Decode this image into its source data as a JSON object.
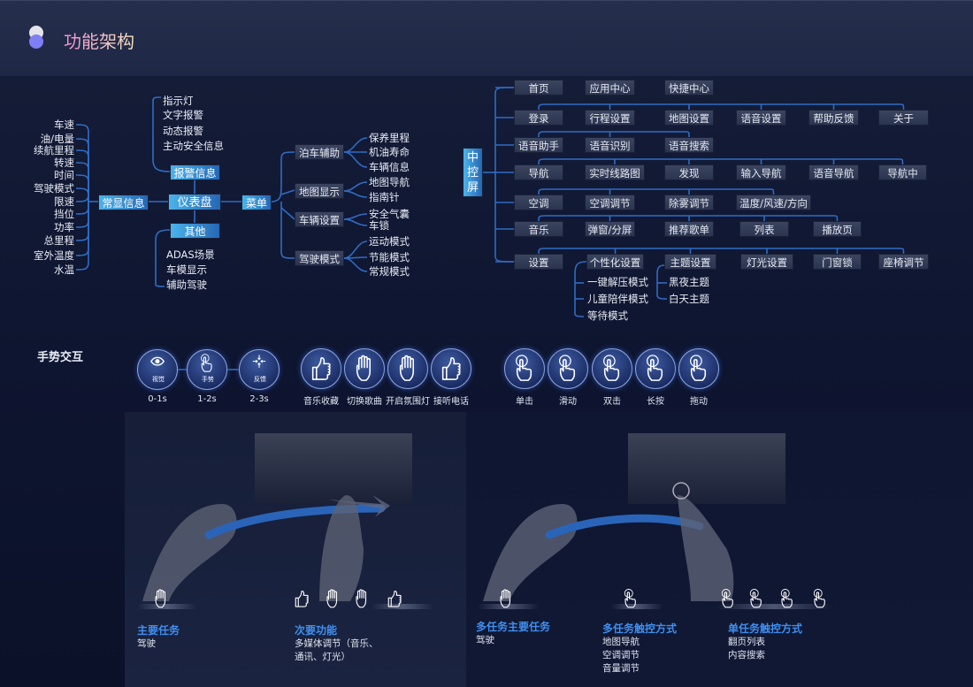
{
  "header": {
    "title": "功能架构"
  },
  "dashboard": {
    "root": "仪表盘",
    "always_on": {
      "label": "常显信息",
      "items": [
        "车速",
        "油/电量",
        "续航里程",
        "转速",
        "时间",
        "驾驶模式",
        "限速",
        "挡位",
        "功率",
        "总里程",
        "室外温度",
        "水温"
      ]
    },
    "alerts": {
      "label": "报警信息",
      "items": [
        "指示灯",
        "文字报警",
        "动态报警",
        "主动安全信息"
      ]
    },
    "other": {
      "label": "其他",
      "items": [
        "ADAS场景",
        "车模显示",
        "辅助驾驶"
      ]
    },
    "menu": {
      "label": "菜单",
      "groups": [
        {
          "label": "泊车辅助",
          "items": [
            "保养里程",
            "机油寿命",
            "车辆信息"
          ]
        },
        {
          "label": "地图显示",
          "items": [
            "地图导航",
            "指南针"
          ]
        },
        {
          "label": "车辆设置",
          "items": [
            "安全气囊",
            "车锁"
          ]
        },
        {
          "label": "驾驶模式",
          "items": [
            "运动模式",
            "节能模式",
            "常规模式"
          ]
        }
      ]
    }
  },
  "center_screen": {
    "root": "中控屏",
    "rows": [
      [
        "首页",
        "应用中心",
        "快捷中心"
      ],
      [
        "登录",
        "行程设置",
        "地图设置",
        "语音设置",
        "帮助反馈",
        "关于"
      ],
      [
        "语音助手",
        "语音识别",
        "语音搜索"
      ],
      [
        "导航",
        "实时线路图",
        "发现",
        "输入导航",
        "语音导航",
        "导航中"
      ],
      [
        "空调",
        "空调调节",
        "除雾调节",
        "温度/风速/方向"
      ],
      [
        "音乐",
        "弹窗/分屏",
        "推荐歌单",
        "列表",
        "播放页"
      ],
      [
        "设置",
        "个性化设置",
        "主题设置",
        "灯光设置",
        "门窗锁",
        "座椅调节"
      ]
    ],
    "personalization": [
      "一键解压模式",
      "儿童陪伴模式",
      "等待模式"
    ],
    "themes": [
      "黑夜主题",
      "白天主题"
    ]
  },
  "gestures": {
    "title": "手势交互",
    "flow": [
      {
        "inner": "视觉",
        "time": "0-1s",
        "icon": "eye-icon"
      },
      {
        "inner": "手势",
        "time": "1-2s",
        "icon": "hand-gesture-icon"
      },
      {
        "inner": "反馈",
        "time": "2-3s",
        "icon": "feedback-icon"
      }
    ],
    "functions": [
      {
        "label": "音乐收藏",
        "icon": "thumbs-up-icon"
      },
      {
        "label": "切换歌曲",
        "icon": "hand-swipe-icon"
      },
      {
        "label": "开启氛围灯",
        "icon": "finger-heart-icon"
      },
      {
        "label": "接听电话",
        "icon": "call-hand-icon"
      }
    ],
    "touch": [
      {
        "label": "单击",
        "icon": "tap-icon"
      },
      {
        "label": "滑动",
        "icon": "swipe-icon"
      },
      {
        "label": "双击",
        "icon": "double-tap-icon"
      },
      {
        "label": "长按",
        "icon": "long-press-icon"
      },
      {
        "label": "拖动",
        "icon": "drag-icon"
      }
    ]
  },
  "scenarios": [
    {
      "title": "主要任务",
      "text": "驾驶"
    },
    {
      "title": "次要功能",
      "text": "多媒体调节（音乐、\n通讯、灯光）"
    },
    {
      "title": "多任务主要任务",
      "text": "驾驶"
    },
    {
      "title": "多任务触控方式",
      "text": "地图导航\n空调调节\n音量调节"
    },
    {
      "title": "单任务触控方式",
      "text": "翻页列表\n内容搜索"
    }
  ],
  "colors": {
    "accent": "#3f8ff0",
    "line": "#2f6cc4",
    "node": "#2b3450"
  }
}
